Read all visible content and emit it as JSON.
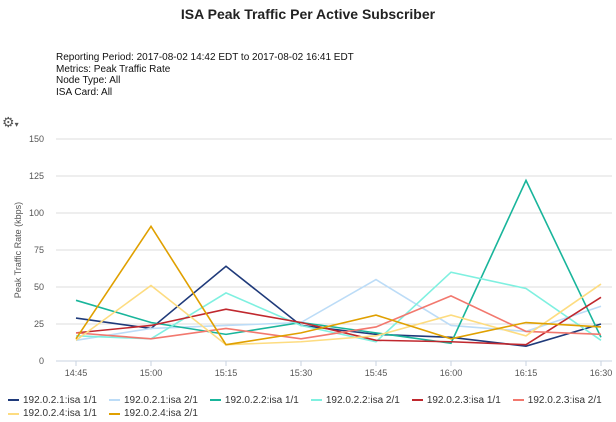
{
  "chart_data": {
    "type": "line",
    "title": "ISA Peak Traffic Per Active Subscriber",
    "meta": [
      "Reporting Period: 2017-08-02 14:42 EDT to 2017-08-02 16:41 EDT",
      "Metrics: Peak Traffic Rate",
      "Node Type: All",
      "ISA Card: All"
    ],
    "xlabel": "",
    "ylabel": "Peak Traffic Rate (kbps)",
    "categories": [
      "14:45",
      "15:00",
      "15:15",
      "15:30",
      "15:45",
      "16:00",
      "16:15",
      "16:30"
    ],
    "ylim": [
      0,
      150
    ],
    "yticks": [
      0,
      25,
      50,
      75,
      100,
      125,
      150
    ],
    "grid": true,
    "legend": "bottom",
    "series": [
      {
        "name": "192.0.2.1:isa 1/1",
        "color": "#1f3a7a",
        "values": [
          29,
          22,
          64,
          24,
          18,
          16,
          10,
          25
        ]
      },
      {
        "name": "192.0.2.1:isa 2/1",
        "color": "#bcdcf7",
        "values": [
          14,
          22,
          24,
          26,
          55,
          24,
          20,
          37
        ]
      },
      {
        "name": "192.0.2.2:isa 1/1",
        "color": "#19b59b",
        "values": [
          41,
          26,
          18,
          26,
          19,
          12,
          122,
          16
        ]
      },
      {
        "name": "192.0.2.2:isa 2/1",
        "color": "#7ff0e0",
        "values": [
          17,
          15,
          46,
          24,
          13,
          60,
          49,
          14
        ]
      },
      {
        "name": "192.0.2.3:isa 1/1",
        "color": "#c0282e",
        "values": [
          19,
          24,
          35,
          26,
          14,
          13,
          11,
          43
        ]
      },
      {
        "name": "192.0.2.3:isa 2/1",
        "color": "#f2786e",
        "values": [
          19,
          15,
          22,
          15,
          23,
          44,
          20,
          18
        ]
      },
      {
        "name": "192.0.2.4:isa 1/1",
        "color": "#fddc80",
        "values": [
          14,
          51,
          11,
          13,
          17,
          31,
          17,
          52
        ]
      },
      {
        "name": "192.0.2.4:isa 2/1",
        "color": "#e0a000",
        "values": [
          15,
          91,
          11,
          19,
          31,
          15,
          26,
          23
        ]
      }
    ]
  },
  "toolbar": {
    "gear_icon": "gear-dropdown-icon"
  }
}
